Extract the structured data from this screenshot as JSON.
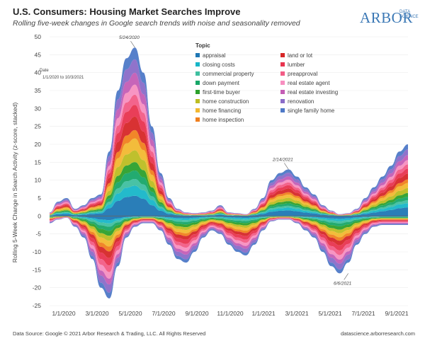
{
  "header": {
    "title": "U.S. Consumers: Housing Market Searches Improve",
    "subtitle": "Rolling five-week changes in Google search trends with noise and seasonality removed",
    "brand": "ARBOR",
    "brand_sub": [
      "DATA",
      "SCIENCE"
    ]
  },
  "date_filter": {
    "label": "Date",
    "range": "1/1/2020 to 10/3/2021"
  },
  "footer": {
    "source": "Data Source: Google © 2021 Arbor Research & Trading, LLC. All Rights Reserved",
    "url": "datascience.arborresearch.com"
  },
  "chart_data": {
    "type": "area",
    "stacked": true,
    "title": "U.S. Consumers: Housing Market Searches Improve",
    "ylabel": "Rolling 5-Week Change in Search Activity (z-score, stacked)",
    "xlabel": "",
    "ylim": [
      -25,
      50
    ],
    "yticks": [
      -25,
      -20,
      -15,
      -10,
      -5,
      0,
      5,
      10,
      15,
      20,
      25,
      30,
      35,
      40,
      45,
      50
    ],
    "xticks": [
      "1/1/2020",
      "3/1/2020",
      "5/1/2020",
      "7/1/2020",
      "9/1/2020",
      "11/1/2020",
      "1/1/2021",
      "3/1/2021",
      "5/1/2021",
      "7/1/2021",
      "9/1/2021"
    ],
    "legend_title": "Topic",
    "annotations": [
      {
        "label": "5/24/2020",
        "x": 5,
        "y": 47
      },
      {
        "label": "2/14/2021",
        "x": 14,
        "y": 13
      },
      {
        "label": "6/6/2021",
        "x": 17.5,
        "y": -16
      }
    ],
    "x": [
      0,
      0.5,
      1,
      1.5,
      2,
      2.5,
      3,
      3.5,
      4,
      4.5,
      5,
      5.5,
      6,
      6.5,
      7,
      7.5,
      8,
      8.5,
      9,
      9.5,
      10,
      10.5,
      11,
      11.5,
      12,
      12.5,
      13,
      13.5,
      14,
      14.5,
      15,
      15.5,
      16,
      16.5,
      17,
      17.5,
      18,
      18.5,
      19,
      19.5,
      20,
      20.5,
      21
    ],
    "series": [
      {
        "name": "appraisal",
        "color": "#1f77b4",
        "values": [
          0,
          0.2,
          0.3,
          0,
          -0.5,
          -0.8,
          -0.5,
          0.5,
          1.2,
          1.8,
          2.2,
          2,
          1.5,
          1,
          0.5,
          0,
          -0.5,
          -0.6,
          -0.4,
          -0.2,
          0,
          -0.2,
          -0.4,
          -0.2,
          0,
          0.3,
          0.3,
          0.4,
          0.5,
          0.4,
          0.2,
          0,
          -0.3,
          -0.4,
          -0.3,
          0,
          0.2,
          0.4,
          0.6,
          0.9,
          1.2,
          1.6,
          2
        ]
      },
      {
        "name": "closing costs",
        "color": "#17b6c8",
        "values": [
          0,
          0.2,
          0.3,
          0,
          -0.5,
          -0.8,
          -0.5,
          0.5,
          1.2,
          1.8,
          2.2,
          2,
          1.5,
          1,
          0.5,
          0,
          -0.5,
          -0.6,
          -0.4,
          -0.2,
          0,
          -0.2,
          -0.4,
          -0.2,
          0,
          0.3,
          0.3,
          0.4,
          0.5,
          0.4,
          0.2,
          0,
          -0.3,
          -0.4,
          -0.3,
          0,
          0.2,
          0.4,
          0.6,
          0.9,
          1.2,
          1.6,
          2
        ]
      },
      {
        "name": "commercial property",
        "color": "#3fbfa0",
        "values": [
          0,
          0.2,
          0.3,
          0,
          -0.5,
          -0.8,
          -0.5,
          0.5,
          1.2,
          1.8,
          2.2,
          2,
          1.5,
          1,
          0.5,
          0,
          -0.5,
          -0.6,
          -0.4,
          -0.2,
          0,
          -0.2,
          -0.4,
          -0.2,
          0,
          0.3,
          0.3,
          0.4,
          0.5,
          0.4,
          0.2,
          0,
          -0.3,
          -0.4,
          -0.3,
          0,
          0.2,
          0.4,
          0.6,
          0.9,
          1.2,
          1.6,
          2
        ]
      },
      {
        "name": "down payment",
        "color": "#17a768",
        "values": [
          0,
          0.2,
          0.3,
          0,
          -0.5,
          -0.8,
          -0.5,
          0.5,
          1.2,
          1.8,
          2.2,
          2,
          1.5,
          1,
          0.5,
          0,
          -0.5,
          -0.6,
          -0.4,
          -0.2,
          0,
          -0.2,
          -0.4,
          -0.2,
          0,
          0.3,
          0.3,
          0.4,
          0.5,
          0.4,
          0.2,
          0,
          -0.3,
          -0.4,
          -0.3,
          0,
          0.2,
          0.4,
          0.6,
          0.9,
          1.2,
          1.6,
          2
        ]
      },
      {
        "name": "first-time buyer",
        "color": "#2ca02c",
        "values": [
          0,
          0.2,
          0.3,
          0,
          -0.5,
          -0.8,
          -0.5,
          0.5,
          1.2,
          1.8,
          2.2,
          2,
          1.5,
          1,
          0.5,
          0,
          -0.5,
          -0.6,
          -0.4,
          -0.2,
          0,
          -0.2,
          -0.4,
          -0.2,
          0,
          0.3,
          0.3,
          0.4,
          0.5,
          0.4,
          0.2,
          0,
          -0.3,
          -0.4,
          -0.3,
          0,
          0.2,
          0.4,
          0.6,
          0.9,
          1.2,
          1.6,
          2
        ]
      },
      {
        "name": "home construction",
        "color": "#bcbd22",
        "values": [
          0,
          0.2,
          0.3,
          0,
          -0.5,
          -0.8,
          -0.5,
          0.5,
          1.2,
          1.8,
          2.2,
          2,
          1.5,
          1,
          0.5,
          0,
          -0.5,
          -0.6,
          -0.4,
          -0.2,
          0,
          -0.2,
          -0.4,
          -0.2,
          0,
          0.3,
          0.3,
          0.4,
          0.5,
          0.4,
          0.2,
          0,
          -0.3,
          -0.4,
          -0.3,
          0,
          0.2,
          0.4,
          0.6,
          0.9,
          1.2,
          1.6,
          2
        ]
      },
      {
        "name": "home financing",
        "color": "#f2b830",
        "values": [
          0,
          0.2,
          0.3,
          0,
          -0.5,
          -0.8,
          -0.5,
          0.5,
          1.2,
          1.8,
          2.2,
          2,
          1.5,
          1,
          0.5,
          0,
          -0.5,
          -0.6,
          -0.4,
          -0.2,
          0,
          -0.2,
          -0.4,
          -0.2,
          0,
          0.3,
          0.3,
          0.4,
          0.5,
          0.4,
          0.2,
          0,
          -0.3,
          -0.4,
          -0.3,
          0,
          0.2,
          0.4,
          0.6,
          0.9,
          1.2,
          1.6,
          2
        ]
      },
      {
        "name": "home inspection",
        "color": "#f07f1e",
        "values": [
          0,
          0.2,
          0.3,
          0,
          -0.5,
          -0.8,
          -0.5,
          0.5,
          1.2,
          1.8,
          2.2,
          2,
          1.5,
          1,
          0.5,
          0,
          -0.5,
          -0.6,
          -0.4,
          -0.2,
          0,
          -0.2,
          -0.4,
          -0.2,
          0,
          0.3,
          0.3,
          0.4,
          0.5,
          0.4,
          0.2,
          0,
          -0.3,
          -0.4,
          -0.3,
          0,
          0.2,
          0.4,
          0.6,
          0.9,
          1.2,
          1.6,
          2
        ]
      },
      {
        "name": "land or lot",
        "color": "#d62728",
        "values": [
          0,
          0.2,
          0.3,
          0,
          -0.5,
          -0.8,
          -0.5,
          0.5,
          1.2,
          1.8,
          2.2,
          2,
          1.5,
          1,
          0.5,
          0,
          -0.5,
          -0.6,
          -0.4,
          -0.2,
          0,
          -0.2,
          -0.4,
          -0.2,
          0,
          0.3,
          0.3,
          0.4,
          0.5,
          0.4,
          0.2,
          0,
          -0.3,
          -0.4,
          -0.3,
          0,
          0.2,
          0.4,
          0.6,
          0.9,
          1.2,
          1.6,
          2
        ]
      },
      {
        "name": "lumber",
        "color": "#e8344f",
        "values": [
          0,
          0.2,
          0.3,
          0,
          -0.5,
          -0.8,
          -0.5,
          0.5,
          1.2,
          1.8,
          2.2,
          2,
          1.5,
          1,
          0.5,
          0,
          -0.5,
          -0.6,
          -0.4,
          -0.2,
          0,
          -0.2,
          -0.4,
          -0.2,
          0,
          0.3,
          0.3,
          0.4,
          0.5,
          0.4,
          0.2,
          0,
          -0.3,
          -0.4,
          -0.3,
          0,
          0.2,
          0.4,
          0.6,
          0.9,
          1.2,
          1.6,
          2
        ]
      },
      {
        "name": "preapproval",
        "color": "#f25c86",
        "values": [
          0,
          0.2,
          0.3,
          0,
          -0.5,
          -0.8,
          -0.5,
          0.5,
          1.2,
          1.8,
          2.2,
          2,
          1.5,
          1,
          0.5,
          0,
          -0.5,
          -0.6,
          -0.4,
          -0.2,
          0,
          -0.2,
          -0.4,
          -0.2,
          0,
          0.3,
          0.3,
          0.4,
          0.5,
          0.4,
          0.2,
          0,
          -0.3,
          -0.4,
          -0.3,
          0,
          0.2,
          0.4,
          0.6,
          0.9,
          1.2,
          1.6,
          2
        ]
      },
      {
        "name": "real estate agent",
        "color": "#f78fc0",
        "values": [
          0,
          0.2,
          0.3,
          0,
          -0.5,
          -0.8,
          -0.5,
          0.5,
          1.2,
          1.8,
          2.2,
          2,
          1.5,
          1,
          0.5,
          0,
          -0.5,
          -0.6,
          -0.4,
          -0.2,
          0,
          -0.2,
          -0.4,
          -0.2,
          0,
          0.3,
          0.3,
          0.4,
          0.5,
          0.4,
          0.2,
          0,
          -0.3,
          -0.4,
          -0.3,
          0,
          0.2,
          0.4,
          0.6,
          0.9,
          1.2,
          1.6,
          2
        ]
      },
      {
        "name": "real estate investing",
        "color": "#c45db5",
        "values": [
          0,
          0.2,
          0.3,
          0,
          -0.5,
          -0.8,
          -0.5,
          0.5,
          1.2,
          1.8,
          2.2,
          2,
          1.5,
          1,
          0.5,
          0,
          -0.5,
          -0.6,
          -0.4,
          -0.2,
          0,
          -0.2,
          -0.4,
          -0.2,
          0,
          0.3,
          0.3,
          0.4,
          0.5,
          0.4,
          0.2,
          0,
          -0.3,
          -0.4,
          -0.3,
          0,
          0.2,
          0.4,
          0.6,
          0.9,
          1.2,
          1.6,
          2
        ]
      },
      {
        "name": "renovation",
        "color": "#8a6cc8",
        "values": [
          0,
          0.2,
          0.3,
          0,
          -0.5,
          -0.8,
          -0.5,
          0.5,
          1.2,
          1.8,
          2.2,
          2,
          1.5,
          1,
          0.5,
          0,
          -0.5,
          -0.6,
          -0.4,
          -0.2,
          0,
          -0.2,
          -0.4,
          -0.2,
          0,
          0.3,
          0.3,
          0.4,
          0.5,
          0.4,
          0.2,
          0,
          -0.3,
          -0.4,
          -0.3,
          0,
          0.2,
          0.4,
          0.6,
          0.9,
          1.2,
          1.6,
          2
        ]
      },
      {
        "name": "single family home",
        "color": "#4e79c7",
        "values": [
          0,
          0.2,
          0.3,
          0,
          -0.5,
          -0.8,
          -0.5,
          0.5,
          1.2,
          1.8,
          2.2,
          2,
          1.5,
          1,
          0.5,
          0,
          -0.5,
          -0.6,
          -0.4,
          -0.2,
          0,
          -0.2,
          -0.4,
          -0.2,
          0,
          0.3,
          0.3,
          0.4,
          0.5,
          0.4,
          0.2,
          0,
          -0.3,
          -0.4,
          -0.3,
          0,
          0.2,
          0.4,
          0.6,
          0.9,
          1.2,
          1.6,
          2
        ]
      }
    ],
    "total_positive": [
      1,
      4,
      5,
      2,
      3,
      5,
      6,
      18,
      35,
      44,
      47,
      40,
      25,
      12,
      5,
      2,
      1,
      0.8,
      1,
      1.5,
      3,
      1,
      0.8,
      0.5,
      2,
      5,
      10,
      12,
      13,
      11,
      8,
      6,
      3,
      1.5,
      0.5,
      0.8,
      2,
      5,
      8,
      11,
      14,
      18,
      20
    ],
    "total_negative": [
      -2,
      -1,
      -0.5,
      -3,
      -6,
      -12,
      -20,
      -23,
      -14,
      -6,
      -3,
      -2,
      -2,
      -4,
      -8,
      -12,
      -13,
      -10,
      -6,
      -4,
      -5,
      -8,
      -10,
      -11,
      -8,
      -4,
      -1.5,
      -1,
      -1,
      -2,
      -4,
      -6,
      -10,
      -14,
      -16,
      -13,
      -8,
      -5,
      -3,
      -2.5,
      -2.5,
      -2.5,
      -2.5
    ]
  }
}
